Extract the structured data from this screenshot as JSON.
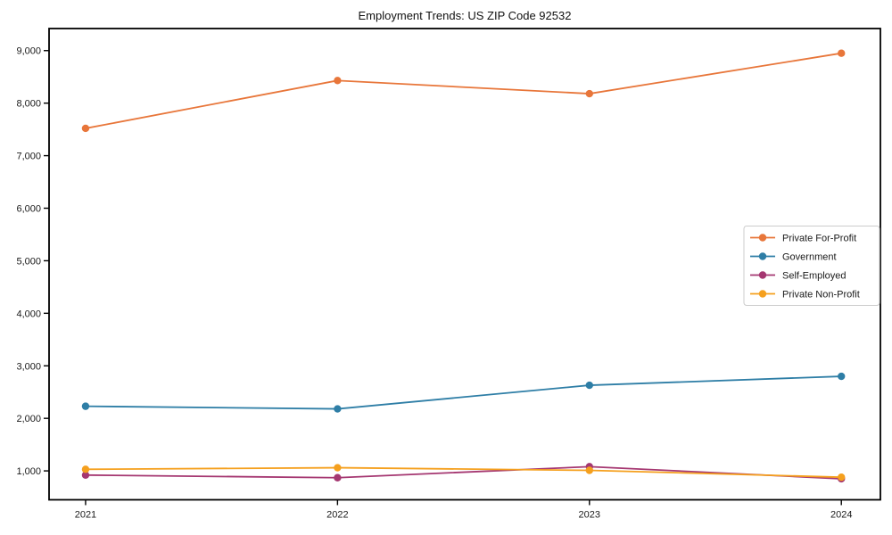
{
  "chart_data": {
    "type": "line",
    "title": "Employment Trends: US ZIP Code 92532",
    "x": [
      2021,
      2022,
      2023,
      2024
    ],
    "xtick_labels": [
      "2021",
      "2022",
      "2023",
      "2024"
    ],
    "yticks": [
      1000,
      2000,
      3000,
      4000,
      5000,
      6000,
      7000,
      8000,
      9000
    ],
    "ytick_labels": [
      "1,000",
      "2,000",
      "3,000",
      "4,000",
      "5,000",
      "6,000",
      "7,000",
      "8,000",
      "9,000"
    ],
    "xlim": [
      2020.855,
      2024.155
    ],
    "ylim": [
      450,
      9420
    ],
    "grid": false,
    "legend_position": "center-right",
    "marker": "circle",
    "series": [
      {
        "name": "Private For-Profit",
        "color": "#E8763A",
        "values": [
          7520,
          8430,
          8180,
          8950
        ]
      },
      {
        "name": "Government",
        "color": "#2E7EA6",
        "values": [
          2230,
          2180,
          2630,
          2800
        ]
      },
      {
        "name": "Self-Employed",
        "color": "#A53771",
        "values": [
          920,
          870,
          1080,
          850
        ]
      },
      {
        "name": "Private Non-Profit",
        "color": "#F5A01E",
        "values": [
          1030,
          1060,
          1010,
          880
        ]
      }
    ],
    "xlabel": "",
    "ylabel": "",
    "axis_color": "#000000",
    "tick_label_color": "#1a1a1a",
    "legend_border_color": "#cccccc",
    "background_color": "#ffffff"
  }
}
